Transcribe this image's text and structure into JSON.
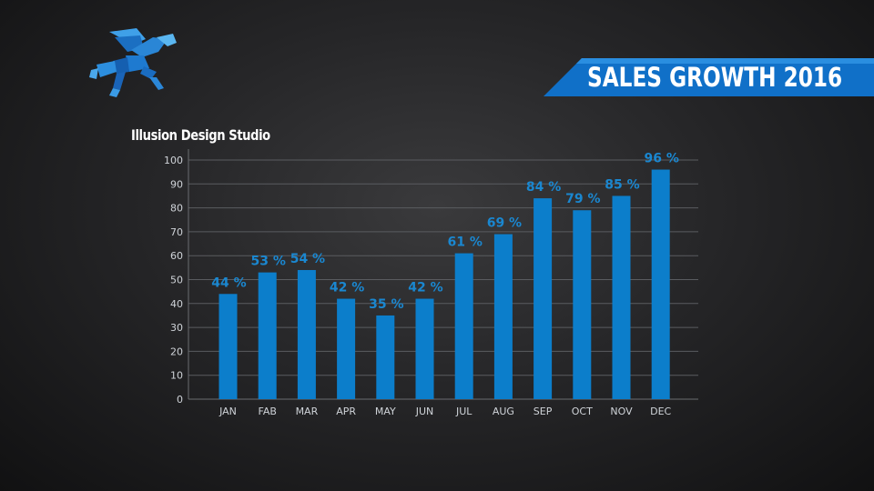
{
  "brand": {
    "studio_name": "Illusion Design Studio"
  },
  "colors": {
    "bar": "#0c7ecb",
    "label": "#1a87d0",
    "banner": "#1070c8",
    "grid": "#5a5c60"
  },
  "chart_data": {
    "type": "bar",
    "title": "SALES GROWTH 2016",
    "categories": [
      "JAN",
      "FAB",
      "MAR",
      "APR",
      "MAY",
      "JUN",
      "JUL",
      "AUG",
      "SEP",
      "OCT",
      "NOV",
      "DEC"
    ],
    "values": [
      44,
      53,
      54,
      42,
      35,
      42,
      61,
      69,
      84,
      79,
      85,
      96
    ],
    "data_labels": [
      "44 %",
      "53 %",
      "54 %",
      "42 %",
      "35 %",
      "42 %",
      "61 %",
      "69 %",
      "84 %",
      "79 %",
      "85 %",
      "96 %"
    ],
    "yticks": [
      0,
      10,
      20,
      30,
      40,
      50,
      60,
      70,
      80,
      90,
      100
    ],
    "ylim": [
      0,
      100
    ],
    "xlabel": "",
    "ylabel": "",
    "grid": true
  }
}
